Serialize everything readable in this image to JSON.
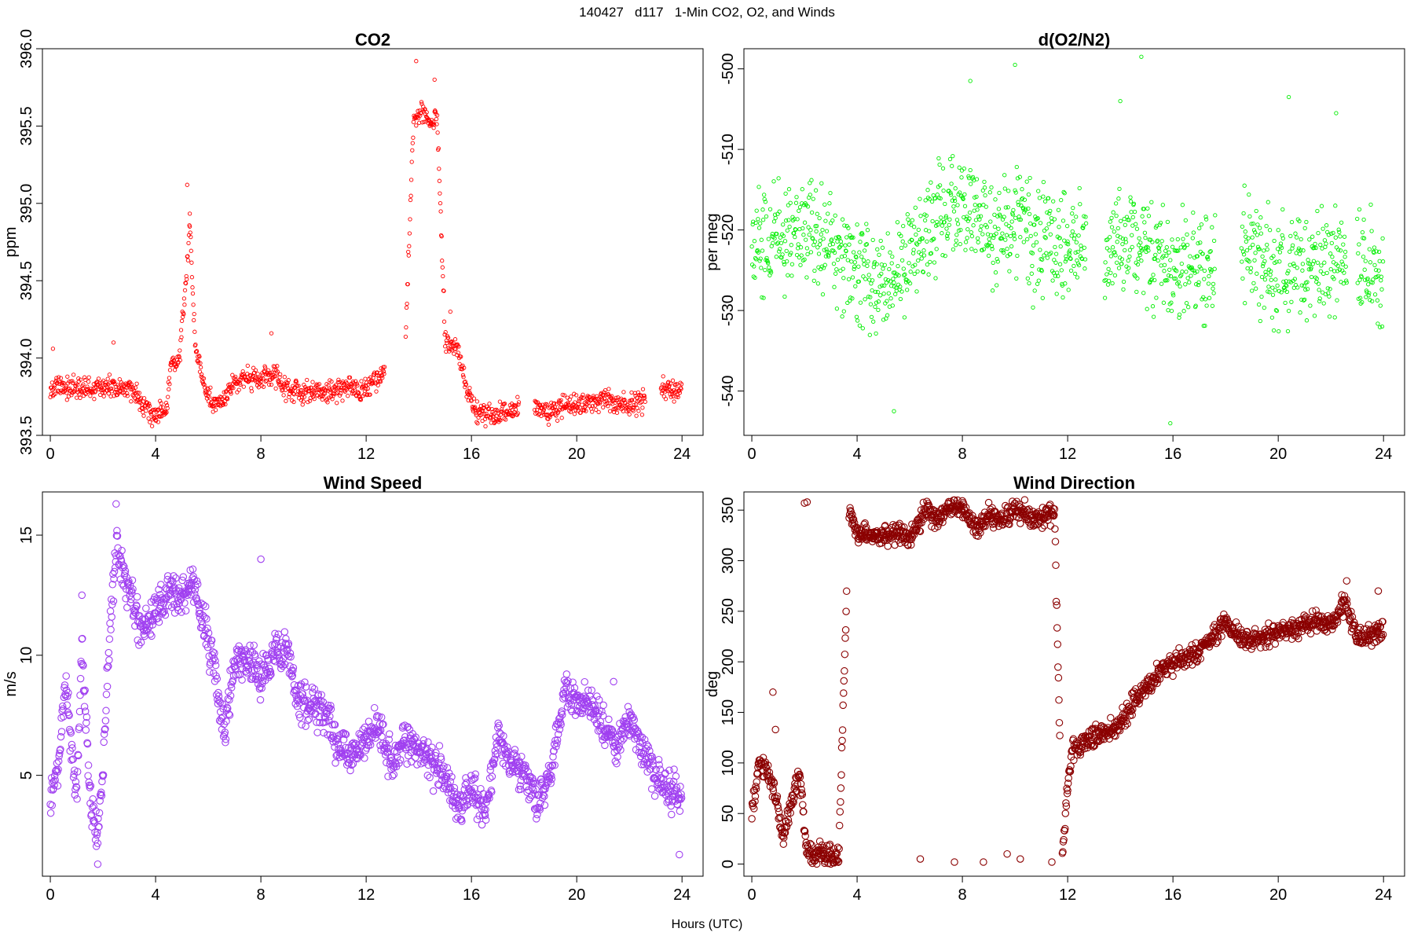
{
  "main_title": "140427   d117   1-Min CO2, O2, and Winds",
  "x_axis_label": "Hours (UTC)",
  "chart_data": [
    {
      "type": "scatter",
      "title": "CO2",
      "ylabel": "ppm",
      "xlabel": "",
      "color": "#ff0000",
      "marker_size": "small",
      "xlim": [
        -0.3,
        24.8
      ],
      "ylim": [
        393.5,
        396.0
      ],
      "x_ticks": [
        0,
        4,
        8,
        12,
        16,
        20,
        24
      ],
      "x_tick_labels": [
        "0",
        "4",
        "8",
        "12",
        "16",
        "20",
        "24"
      ],
      "y_ticks": [
        393.5,
        394.0,
        394.5,
        395.0,
        395.5,
        396.0
      ],
      "y_tick_labels": [
        "393.5",
        "394.0",
        "394.5",
        "395.0",
        "395.5",
        "396.0"
      ],
      "profile": [
        [
          0.0,
          393.8
        ],
        [
          0.5,
          393.82
        ],
        [
          1.0,
          393.8
        ],
        [
          1.5,
          393.8
        ],
        [
          2.0,
          393.82
        ],
        [
          2.5,
          393.8
        ],
        [
          3.0,
          393.8
        ],
        [
          3.5,
          393.72
        ],
        [
          3.9,
          393.63
        ],
        [
          4.4,
          393.65
        ],
        [
          4.6,
          393.97
        ],
        [
          4.9,
          394.0
        ],
        [
          5.0,
          394.2
        ],
        [
          5.2,
          394.6
        ],
        [
          5.3,
          394.9
        ],
        [
          5.5,
          394.1
        ],
        [
          5.8,
          393.85
        ],
        [
          6.2,
          393.67
        ],
        [
          6.5,
          393.72
        ],
        [
          7.0,
          393.85
        ],
        [
          7.5,
          393.87
        ],
        [
          8.0,
          393.85
        ],
        [
          8.5,
          393.9
        ],
        [
          9.0,
          393.8
        ],
        [
          9.5,
          393.77
        ],
        [
          10.0,
          393.78
        ],
        [
          10.5,
          393.78
        ],
        [
          11.0,
          393.8
        ],
        [
          11.5,
          393.8
        ],
        [
          12.0,
          393.8
        ],
        [
          12.5,
          393.87
        ],
        [
          13.5,
          394.15
        ],
        [
          13.8,
          395.55
        ],
        [
          14.2,
          395.6
        ],
        [
          14.4,
          395.5
        ],
        [
          14.7,
          395.55
        ],
        [
          15.0,
          394.1
        ],
        [
          15.5,
          394.05
        ],
        [
          15.8,
          393.8
        ],
        [
          16.2,
          393.65
        ],
        [
          16.8,
          393.62
        ],
        [
          17.2,
          393.65
        ],
        [
          17.7,
          393.68
        ],
        [
          18.5,
          393.68
        ],
        [
          19.0,
          393.65
        ],
        [
          19.5,
          393.7
        ],
        [
          20.0,
          393.7
        ],
        [
          21.0,
          393.72
        ],
        [
          22.0,
          393.7
        ],
        [
          22.5,
          393.72
        ],
        [
          23.2,
          393.8
        ],
        [
          23.9,
          393.8
        ]
      ],
      "gaps": [
        [
          12.7,
          13.5
        ],
        [
          17.8,
          18.4
        ],
        [
          22.6,
          23.2
        ]
      ],
      "noise": 0.07,
      "spikes": [
        [
          5.2,
          395.12
        ],
        [
          5.3,
          394.85
        ],
        [
          13.9,
          395.92
        ],
        [
          14.6,
          395.8
        ],
        [
          15.2,
          394.3
        ],
        [
          8.4,
          394.16
        ],
        [
          0.1,
          394.06
        ],
        [
          2.4,
          394.1
        ]
      ]
    },
    {
      "type": "scatter",
      "title": "d(O2/N2)",
      "ylabel": "per meg",
      "xlabel": "",
      "color": "#00ee00",
      "marker_size": "small",
      "xlim": [
        -0.3,
        24.8
      ],
      "ylim": [
        -545.5,
        -497.5
      ],
      "x_ticks": [
        0,
        4,
        8,
        12,
        16,
        20,
        24
      ],
      "x_tick_labels": [
        "0",
        "4",
        "8",
        "12",
        "16",
        "20",
        "24"
      ],
      "y_ticks": [
        -540,
        -530,
        -520,
        -510,
        -500
      ],
      "y_tick_labels": [
        "-540",
        "-530",
        "-520",
        "-510",
        "-500"
      ],
      "profile": [
        [
          0.0,
          -522
        ],
        [
          1.0,
          -521
        ],
        [
          2.0,
          -519
        ],
        [
          3.0,
          -522
        ],
        [
          4.0,
          -525
        ],
        [
          5.0,
          -527
        ],
        [
          6.0,
          -524
        ],
        [
          7.0,
          -520
        ],
        [
          8.0,
          -516
        ],
        [
          9.0,
          -521
        ],
        [
          10.0,
          -519
        ],
        [
          11.0,
          -522
        ],
        [
          12.0,
          -522
        ],
        [
          12.6,
          -522
        ],
        [
          13.5,
          -522
        ],
        [
          14.5,
          -521
        ],
        [
          15.5,
          -524
        ],
        [
          16.5,
          -524
        ],
        [
          17.5,
          -525
        ],
        [
          18.5,
          -522
        ],
        [
          19.5,
          -524
        ],
        [
          20.5,
          -525
        ],
        [
          21.5,
          -524
        ],
        [
          22.5,
          -524
        ],
        [
          23.5,
          -525
        ],
        [
          23.9,
          -526
        ]
      ],
      "gaps": [
        [
          12.7,
          13.4
        ],
        [
          17.6,
          18.6
        ],
        [
          22.6,
          23.0
        ]
      ],
      "noise": 6.5,
      "spikes": [
        [
          14.8,
          -498.5
        ],
        [
          10.0,
          -499.5
        ],
        [
          8.3,
          -501.5
        ],
        [
          15.9,
          -544.0
        ],
        [
          5.4,
          -542.5
        ],
        [
          14.0,
          -504
        ],
        [
          20.4,
          -503.5
        ],
        [
          22.2,
          -505.5
        ]
      ]
    },
    {
      "type": "scatter",
      "title": "Wind Speed",
      "ylabel": "m/s",
      "xlabel": "",
      "color": "#a040f0",
      "marker_size": "large",
      "xlim": [
        -0.3,
        24.8
      ],
      "ylim": [
        0.8,
        16.8
      ],
      "x_ticks": [
        0,
        4,
        8,
        12,
        16,
        20,
        24
      ],
      "x_tick_labels": [
        "0",
        "4",
        "8",
        "12",
        "16",
        "20",
        "24"
      ],
      "y_ticks": [
        5,
        10,
        15
      ],
      "y_tick_labels": [
        "5",
        "10",
        "15"
      ],
      "profile": [
        [
          0.0,
          4.0
        ],
        [
          0.3,
          5.5
        ],
        [
          0.6,
          9.0
        ],
        [
          0.8,
          6.0
        ],
        [
          1.0,
          4.0
        ],
        [
          1.2,
          10.5
        ],
        [
          1.5,
          4.0
        ],
        [
          1.8,
          2.5
        ],
        [
          2.0,
          5.0
        ],
        [
          2.2,
          10.0
        ],
        [
          2.5,
          14.5
        ],
        [
          3.0,
          12.5
        ],
        [
          3.5,
          11.0
        ],
        [
          4.0,
          12.0
        ],
        [
          4.5,
          12.5
        ],
        [
          5.0,
          12.5
        ],
        [
          5.5,
          13.0
        ],
        [
          6.0,
          10.5
        ],
        [
          6.3,
          9.0
        ],
        [
          6.6,
          7.0
        ],
        [
          7.0,
          9.5
        ],
        [
          7.5,
          10.0
        ],
        [
          8.0,
          9.0
        ],
        [
          8.5,
          10.0
        ],
        [
          9.0,
          10.0
        ],
        [
          9.5,
          8.0
        ],
        [
          10.0,
          8.0
        ],
        [
          10.5,
          7.5
        ],
        [
          11.0,
          6.0
        ],
        [
          11.5,
          6.0
        ],
        [
          12.0,
          6.5
        ],
        [
          12.5,
          7.0
        ],
        [
          13.0,
          5.5
        ],
        [
          13.5,
          6.5
        ],
        [
          14.0,
          6.0
        ],
        [
          14.5,
          5.5
        ],
        [
          15.0,
          5.0
        ],
        [
          15.5,
          3.5
        ],
        [
          16.0,
          4.5
        ],
        [
          16.5,
          3.5
        ],
        [
          17.0,
          6.5
        ],
        [
          17.5,
          5.5
        ],
        [
          18.0,
          5.0
        ],
        [
          18.5,
          4.0
        ],
        [
          19.0,
          5.0
        ],
        [
          19.5,
          8.5
        ],
        [
          20.0,
          8.0
        ],
        [
          20.5,
          8.0
        ],
        [
          21.0,
          7.0
        ],
        [
          21.5,
          6.0
        ],
        [
          22.0,
          7.5
        ],
        [
          22.5,
          6.0
        ],
        [
          23.0,
          5.0
        ],
        [
          23.5,
          4.5
        ],
        [
          23.9,
          4.0
        ]
      ],
      "gaps": [],
      "noise": 0.8,
      "spikes": [
        [
          2.5,
          16.3
        ],
        [
          8.0,
          14.0
        ],
        [
          1.2,
          12.5
        ],
        [
          23.9,
          1.7
        ],
        [
          1.8,
          1.3
        ],
        [
          21.4,
          8.9
        ]
      ]
    },
    {
      "type": "scatter",
      "title": "Wind Direction",
      "ylabel": "deg",
      "xlabel": "",
      "color": "#8b0000",
      "marker_size": "large",
      "xlim": [
        -0.3,
        24.8
      ],
      "ylim": [
        -12,
        368
      ],
      "x_ticks": [
        0,
        4,
        8,
        12,
        16,
        20,
        24
      ],
      "x_tick_labels": [
        "0",
        "4",
        "8",
        "12",
        "16",
        "20",
        "24"
      ],
      "y_ticks": [
        0,
        50,
        100,
        150,
        200,
        250,
        300,
        350
      ],
      "y_tick_labels": [
        "0",
        "50",
        "100",
        "150",
        "200",
        "250",
        "300",
        "350"
      ],
      "profile": [
        [
          0.0,
          50
        ],
        [
          0.3,
          100
        ],
        [
          0.6,
          90
        ],
        [
          0.9,
          65
        ],
        [
          1.2,
          25
        ],
        [
          1.5,
          60
        ],
        [
          1.8,
          90
        ],
        [
          2.1,
          10
        ],
        [
          2.5,
          10
        ],
        [
          3.0,
          10
        ],
        [
          3.3,
          5
        ],
        [
          3.7,
          352
        ],
        [
          4.0,
          328
        ],
        [
          5.0,
          325
        ],
        [
          5.5,
          330
        ],
        [
          6.0,
          322
        ],
        [
          6.3,
          335
        ],
        [
          6.6,
          352
        ],
        [
          7.0,
          340
        ],
        [
          7.5,
          350
        ],
        [
          8.0,
          352
        ],
        [
          8.5,
          330
        ],
        [
          9.0,
          345
        ],
        [
          9.5,
          340
        ],
        [
          10.0,
          350
        ],
        [
          10.5,
          345
        ],
        [
          11.0,
          342
        ],
        [
          11.5,
          350
        ],
        [
          11.8,
          5
        ],
        [
          12.0,
          80
        ],
        [
          12.2,
          115
        ],
        [
          13.0,
          125
        ],
        [
          13.5,
          130
        ],
        [
          14.0,
          140
        ],
        [
          14.5,
          160
        ],
        [
          15.0,
          175
        ],
        [
          15.5,
          190
        ],
        [
          16.0,
          198
        ],
        [
          16.5,
          205
        ],
        [
          17.0,
          210
        ],
        [
          17.5,
          225
        ],
        [
          18.0,
          240
        ],
        [
          18.5,
          225
        ],
        [
          19.0,
          222
        ],
        [
          19.5,
          225
        ],
        [
          20.0,
          230
        ],
        [
          21.0,
          235
        ],
        [
          21.5,
          240
        ],
        [
          22.0,
          235
        ],
        [
          22.5,
          260
        ],
        [
          23.0,
          225
        ],
        [
          23.5,
          225
        ],
        [
          23.9,
          230
        ]
      ],
      "gaps": [
        [
          3.6,
          3.7
        ],
        [
          11.7,
          11.8
        ]
      ],
      "noise": 10,
      "spikes": [
        [
          0.8,
          170
        ],
        [
          0.9,
          133
        ],
        [
          2.0,
          357
        ],
        [
          2.1,
          358
        ],
        [
          6.4,
          5
        ],
        [
          7.7,
          2
        ],
        [
          8.8,
          2
        ],
        [
          9.7,
          10
        ],
        [
          10.2,
          5
        ],
        [
          11.4,
          2
        ],
        [
          22.6,
          280
        ],
        [
          23.8,
          270
        ]
      ]
    }
  ]
}
